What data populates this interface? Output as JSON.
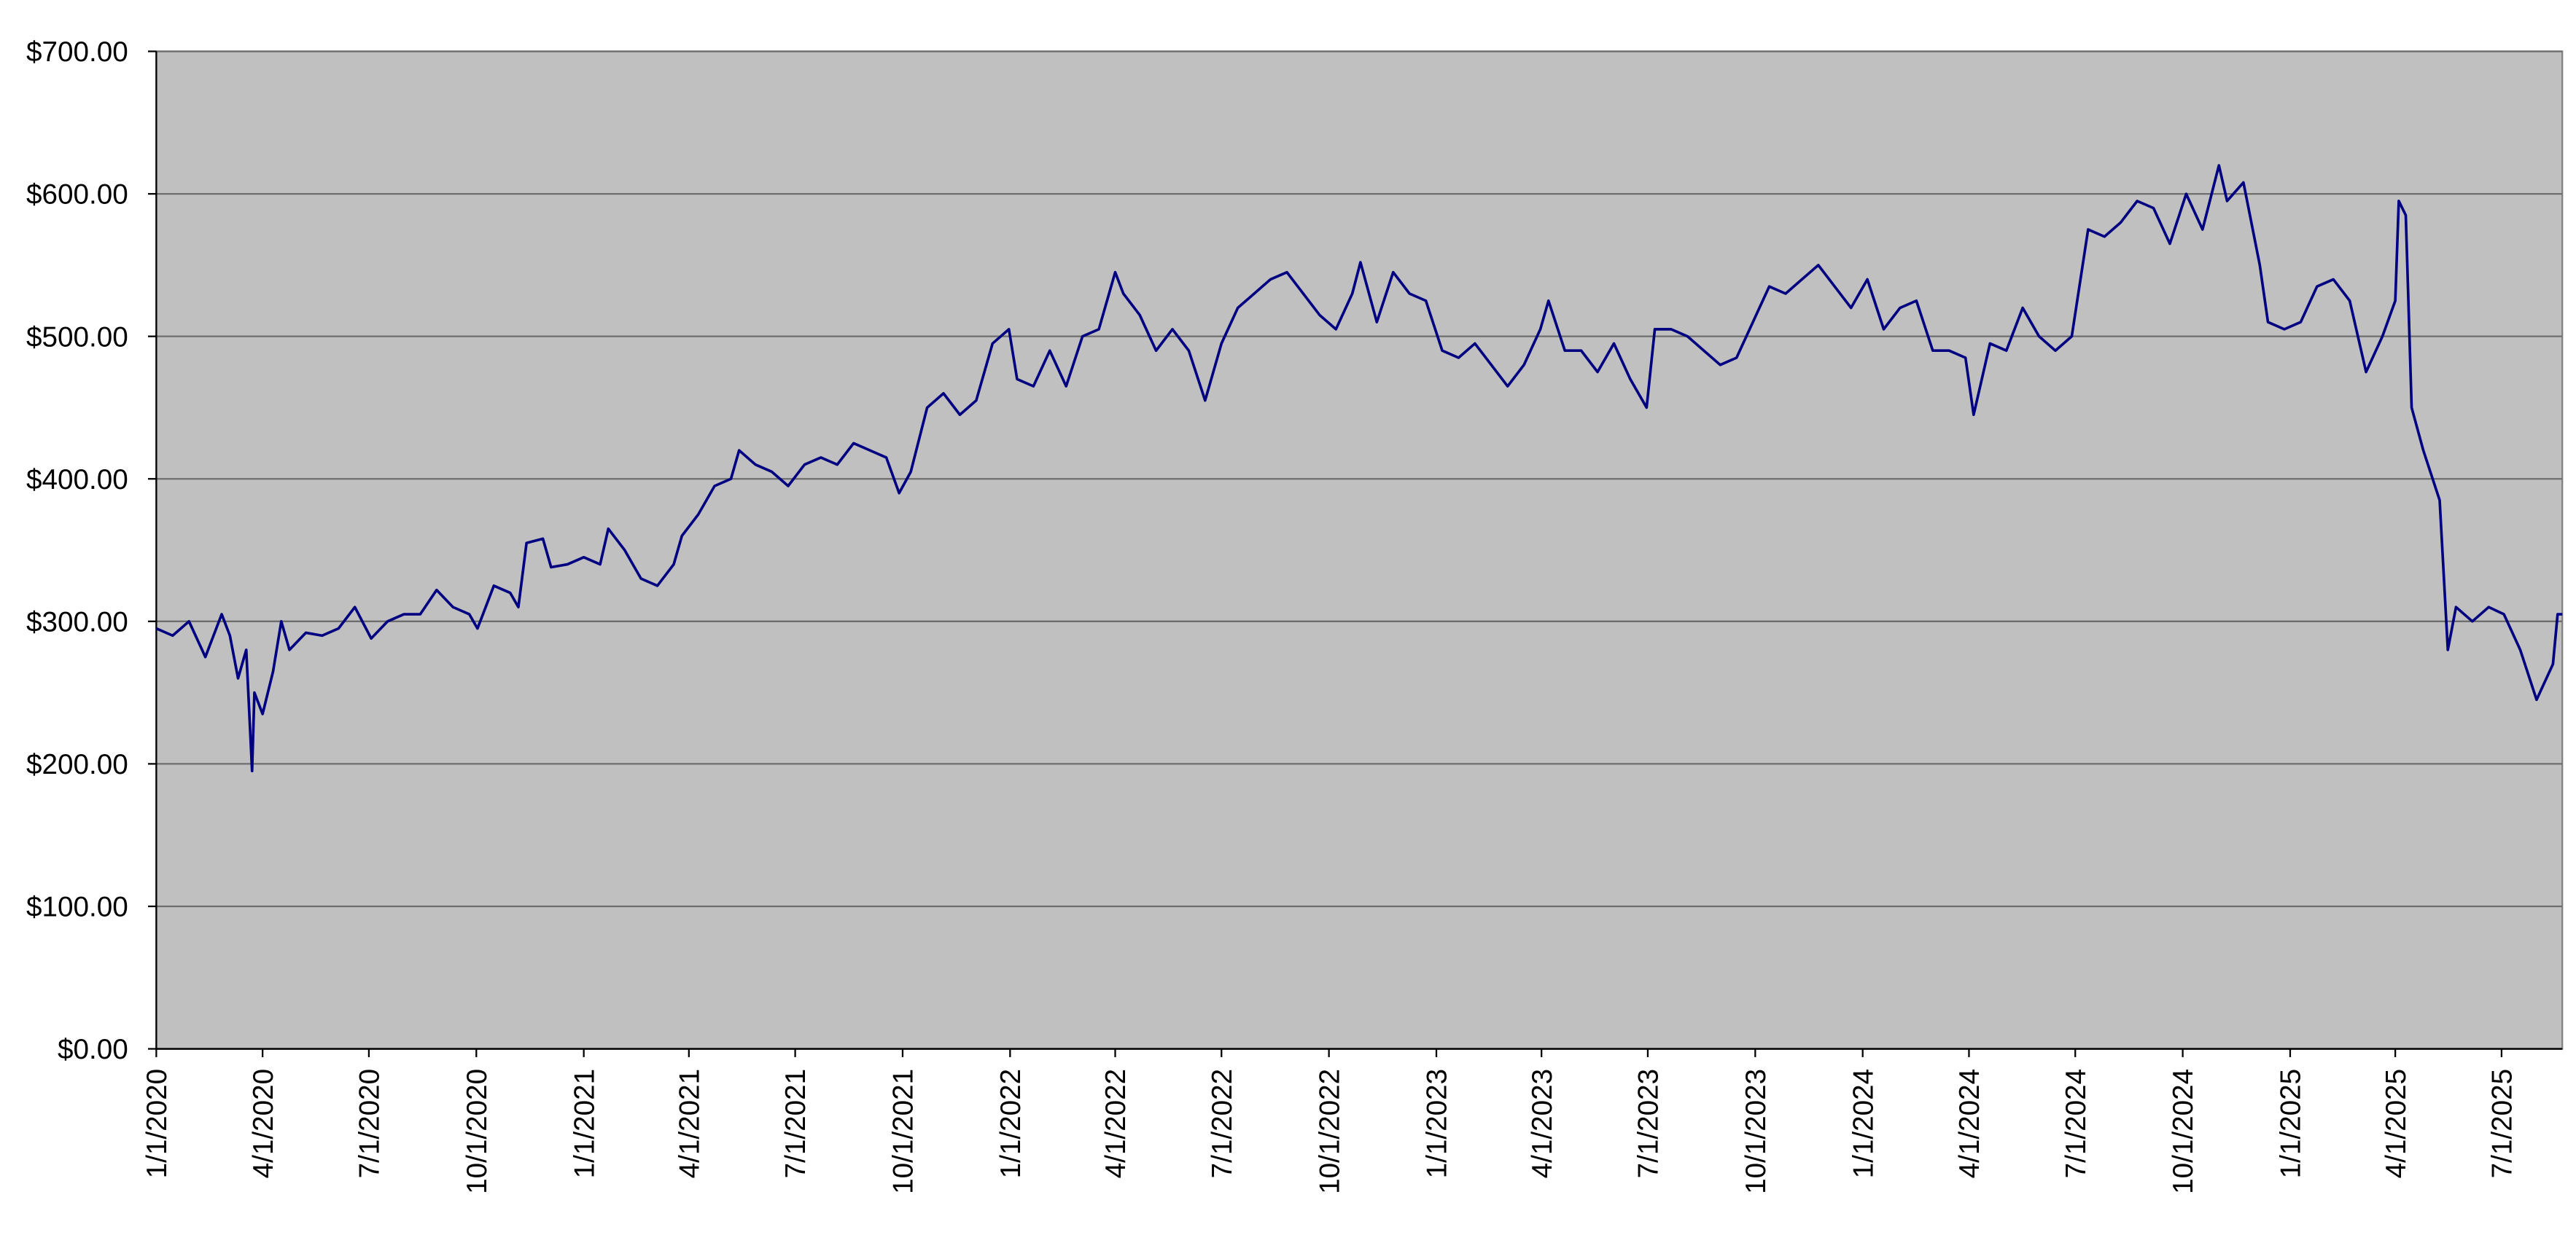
{
  "chart_data": {
    "type": "line",
    "color": "#000080",
    "background": "#c0c0c0",
    "grid": true,
    "ylim": [
      0,
      700
    ],
    "yticks": [
      {
        "value": 0,
        "label": "$0.00"
      },
      {
        "value": 100,
        "label": "$100.00"
      },
      {
        "value": 200,
        "label": "$200.00"
      },
      {
        "value": 300,
        "label": "$300.00"
      },
      {
        "value": 400,
        "label": "$400.00"
      },
      {
        "value": 500,
        "label": "$500.00"
      },
      {
        "value": 600,
        "label": "$600.00"
      },
      {
        "value": 700,
        "label": "$700.00"
      }
    ],
    "xlim": [
      "2020-01-01",
      "2025-08-22"
    ],
    "xticks": [
      {
        "value": "2020-01-01",
        "label": "1/1/2020"
      },
      {
        "value": "2020-04-01",
        "label": "4/1/2020"
      },
      {
        "value": "2020-07-01",
        "label": "7/1/2020"
      },
      {
        "value": "2020-10-01",
        "label": "10/1/2020"
      },
      {
        "value": "2021-01-01",
        "label": "1/1/2021"
      },
      {
        "value": "2021-04-01",
        "label": "4/1/2021"
      },
      {
        "value": "2021-07-01",
        "label": "7/1/2021"
      },
      {
        "value": "2021-10-01",
        "label": "10/1/2021"
      },
      {
        "value": "2022-01-01",
        "label": "1/1/2022"
      },
      {
        "value": "2022-04-01",
        "label": "4/1/2022"
      },
      {
        "value": "2022-07-01",
        "label": "7/1/2022"
      },
      {
        "value": "2022-10-01",
        "label": "10/1/2022"
      },
      {
        "value": "2023-01-01",
        "label": "1/1/2023"
      },
      {
        "value": "2023-04-01",
        "label": "4/1/2023"
      },
      {
        "value": "2023-07-01",
        "label": "7/1/2023"
      },
      {
        "value": "2023-10-01",
        "label": "10/1/2023"
      },
      {
        "value": "2024-01-01",
        "label": "1/1/2024"
      },
      {
        "value": "2024-04-01",
        "label": "4/1/2024"
      },
      {
        "value": "2024-07-01",
        "label": "7/1/2024"
      },
      {
        "value": "2024-10-01",
        "label": "10/1/2024"
      },
      {
        "value": "2025-01-01",
        "label": "1/1/2025"
      },
      {
        "value": "2025-04-01",
        "label": "4/1/2025"
      },
      {
        "value": "2025-07-01",
        "label": "7/1/2025"
      }
    ],
    "x": [
      "2020-01-01",
      "2020-01-15",
      "2020-01-29",
      "2020-02-12",
      "2020-02-26",
      "2020-03-04",
      "2020-03-11",
      "2020-03-18",
      "2020-03-23",
      "2020-03-25",
      "2020-04-01",
      "2020-04-10",
      "2020-04-17",
      "2020-04-24",
      "2020-05-08",
      "2020-05-22",
      "2020-06-05",
      "2020-06-19",
      "2020-07-03",
      "2020-07-17",
      "2020-07-31",
      "2020-08-14",
      "2020-08-28",
      "2020-09-11",
      "2020-09-25",
      "2020-10-02",
      "2020-10-16",
      "2020-10-30",
      "2020-11-06",
      "2020-11-13",
      "2020-11-27",
      "2020-12-04",
      "2020-12-18",
      "2021-01-01",
      "2021-01-15",
      "2021-01-22",
      "2021-02-05",
      "2021-02-19",
      "2021-03-05",
      "2021-03-19",
      "2021-03-26",
      "2021-04-09",
      "2021-04-23",
      "2021-05-07",
      "2021-05-14",
      "2021-05-28",
      "2021-06-11",
      "2021-06-25",
      "2021-07-09",
      "2021-07-23",
      "2021-08-06",
      "2021-08-20",
      "2021-09-03",
      "2021-09-17",
      "2021-09-28",
      "2021-10-08",
      "2021-10-22",
      "2021-11-05",
      "2021-11-19",
      "2021-12-03",
      "2021-12-17",
      "2021-12-31",
      "2022-01-07",
      "2022-01-21",
      "2022-02-04",
      "2022-02-18",
      "2022-03-04",
      "2022-03-18",
      "2022-04-01",
      "2022-04-08",
      "2022-04-22",
      "2022-05-06",
      "2022-05-20",
      "2022-06-03",
      "2022-06-17",
      "2022-07-01",
      "2022-07-15",
      "2022-07-29",
      "2022-08-12",
      "2022-08-26",
      "2022-09-09",
      "2022-09-23",
      "2022-10-07",
      "2022-10-21",
      "2022-10-28",
      "2022-11-11",
      "2022-11-25",
      "2022-12-09",
      "2022-12-23",
      "2023-01-06",
      "2023-01-20",
      "2023-02-03",
      "2023-02-17",
      "2023-03-03",
      "2023-03-17",
      "2023-03-31",
      "2023-04-07",
      "2023-04-21",
      "2023-05-05",
      "2023-05-19",
      "2023-06-02",
      "2023-06-16",
      "2023-06-30",
      "2023-07-07",
      "2023-07-21",
      "2023-08-04",
      "2023-08-18",
      "2023-09-01",
      "2023-09-15",
      "2023-09-29",
      "2023-10-13",
      "2023-10-27",
      "2023-11-10",
      "2023-11-24",
      "2023-12-08",
      "2023-12-22",
      "2024-01-05",
      "2024-01-19",
      "2024-02-02",
      "2024-02-16",
      "2024-03-01",
      "2024-03-15",
      "2024-03-29",
      "2024-04-05",
      "2024-04-19",
      "2024-05-03",
      "2024-05-17",
      "2024-05-31",
      "2024-06-14",
      "2024-06-28",
      "2024-07-12",
      "2024-07-26",
      "2024-08-09",
      "2024-08-23",
      "2024-09-06",
      "2024-09-20",
      "2024-10-04",
      "2024-10-18",
      "2024-11-01",
      "2024-11-08",
      "2024-11-22",
      "2024-12-06",
      "2024-12-13",
      "2024-12-27",
      "2025-01-10",
      "2025-01-24",
      "2025-02-07",
      "2025-02-21",
      "2025-03-07",
      "2025-03-21",
      "2025-04-01",
      "2025-04-04",
      "2025-04-10",
      "2025-04-15",
      "2025-04-25",
      "2025-05-09",
      "2025-05-16",
      "2025-05-23",
      "2025-06-06",
      "2025-06-20",
      "2025-07-03",
      "2025-07-17",
      "2025-07-31",
      "2025-08-14",
      "2025-08-18",
      "2025-08-22"
    ],
    "values": [
      295,
      290,
      300,
      275,
      305,
      290,
      260,
      280,
      195,
      250,
      235,
      265,
      300,
      280,
      292,
      290,
      295,
      310,
      288,
      300,
      305,
      305,
      322,
      310,
      305,
      295,
      325,
      320,
      310,
      355,
      358,
      338,
      340,
      345,
      340,
      365,
      350,
      330,
      325,
      340,
      360,
      375,
      395,
      400,
      420,
      410,
      405,
      395,
      410,
      415,
      410,
      425,
      420,
      415,
      390,
      405,
      450,
      460,
      445,
      455,
      495,
      505,
      470,
      465,
      490,
      465,
      500,
      505,
      545,
      530,
      515,
      490,
      505,
      490,
      455,
      495,
      520,
      530,
      540,
      545,
      530,
      515,
      505,
      530,
      552,
      510,
      545,
      530,
      525,
      490,
      485,
      495,
      480,
      465,
      480,
      505,
      525,
      490,
      490,
      475,
      495,
      470,
      450,
      505,
      505,
      500,
      490,
      480,
      485,
      510,
      535,
      530,
      540,
      550,
      535,
      520,
      540,
      505,
      520,
      525,
      490,
      490,
      485,
      445,
      495,
      490,
      520,
      500,
      490,
      500,
      575,
      570,
      580,
      595,
      590,
      565,
      600,
      575,
      620,
      595,
      608,
      550,
      510,
      505,
      510,
      535,
      540,
      525,
      475,
      500,
      525,
      595,
      585,
      450,
      420,
      385,
      280,
      310,
      300,
      310,
      305,
      280,
      245,
      270,
      305,
      305
    ]
  }
}
